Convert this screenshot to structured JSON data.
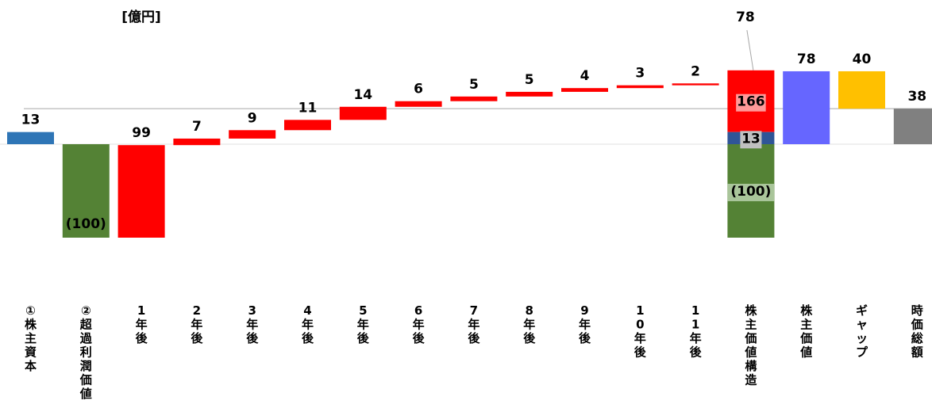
{
  "chart_data": {
    "type": "bar",
    "subtype": "waterfall",
    "unit_label": "[億円]",
    "title": "",
    "xlabel": "",
    "ylabel": "",
    "ylim": [
      -120,
      110
    ],
    "grid": false,
    "colors": {
      "equity": "#2e75b6",
      "excess_profit": "#548235",
      "yearly": "#ff0000",
      "structure_top": "#ff0000",
      "structure_mid": "#2f5597",
      "structure_bottom": "#548235",
      "shareholder_value": "#6666ff",
      "gap": "#ffc000",
      "market_cap": "#808080",
      "reference_line": "#a6a6a6"
    },
    "categories": [
      {
        "key": "equity",
        "label": "①株主資本",
        "value": 13,
        "base": 0,
        "value_label": "13"
      },
      {
        "key": "excess_profit",
        "label": "②超過利潤価値",
        "value": -100,
        "base": 0,
        "value_label": "(100)"
      },
      {
        "key": "y1",
        "label": "1年後",
        "value": 99,
        "base": -100,
        "value_label": "99"
      },
      {
        "key": "y2",
        "label": "2年後",
        "value": 7,
        "base": -1,
        "value_label": "7"
      },
      {
        "key": "y3",
        "label": "3年後",
        "value": 9,
        "base": 6,
        "value_label": "9"
      },
      {
        "key": "y4",
        "label": "4年後",
        "value": 11,
        "base": 15,
        "value_label": "11"
      },
      {
        "key": "y5",
        "label": "5年後",
        "value": 14,
        "base": 26,
        "value_label": "14"
      },
      {
        "key": "y6",
        "label": "6年後",
        "value": 6,
        "base": 40,
        "value_label": "6"
      },
      {
        "key": "y7",
        "label": "7年後",
        "value": 5,
        "base": 46,
        "value_label": "5"
      },
      {
        "key": "y8",
        "label": "8年後",
        "value": 5,
        "base": 51,
        "value_label": "5"
      },
      {
        "key": "y9",
        "label": "9年後",
        "value": 4,
        "base": 56,
        "value_label": "4"
      },
      {
        "key": "y10",
        "label": "10年後",
        "value": 3,
        "base": 60,
        "value_label": "3"
      },
      {
        "key": "y11",
        "label": "11年後",
        "value": 2,
        "base": 63,
        "value_label": "2"
      },
      {
        "key": "structure",
        "label": "株主価値構造",
        "value_label": "78",
        "segments": [
          {
            "name": "top",
            "value": 166,
            "value_label": "166"
          },
          {
            "name": "mid",
            "value": 13,
            "value_label": "13"
          },
          {
            "name": "bottom",
            "value": -100,
            "value_label": "(100)"
          }
        ]
      },
      {
        "key": "shareholder_value",
        "label": "株主価値",
        "value": 78,
        "base": 0,
        "value_label": "78"
      },
      {
        "key": "gap",
        "label": "ギャップ",
        "value": 40,
        "base": 38,
        "value_label": "40"
      },
      {
        "key": "market_cap",
        "label": "時価総額",
        "value": 38,
        "base": 0,
        "value_label": "38"
      }
    ]
  }
}
